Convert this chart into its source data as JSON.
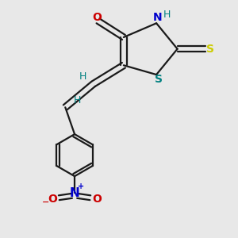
{
  "bg_color": "#e8e8e8",
  "bond_color": "#1a1a1a",
  "O_color": "#cc0000",
  "N_color": "#0000cc",
  "S_thioxo_color": "#cccc00",
  "S_ring_color": "#008080",
  "H_color": "#008080",
  "line_width": 1.6,
  "figsize": [
    3.0,
    3.0
  ],
  "dpi": 100,
  "xlim": [
    0,
    10
  ],
  "ylim": [
    0,
    10
  ]
}
